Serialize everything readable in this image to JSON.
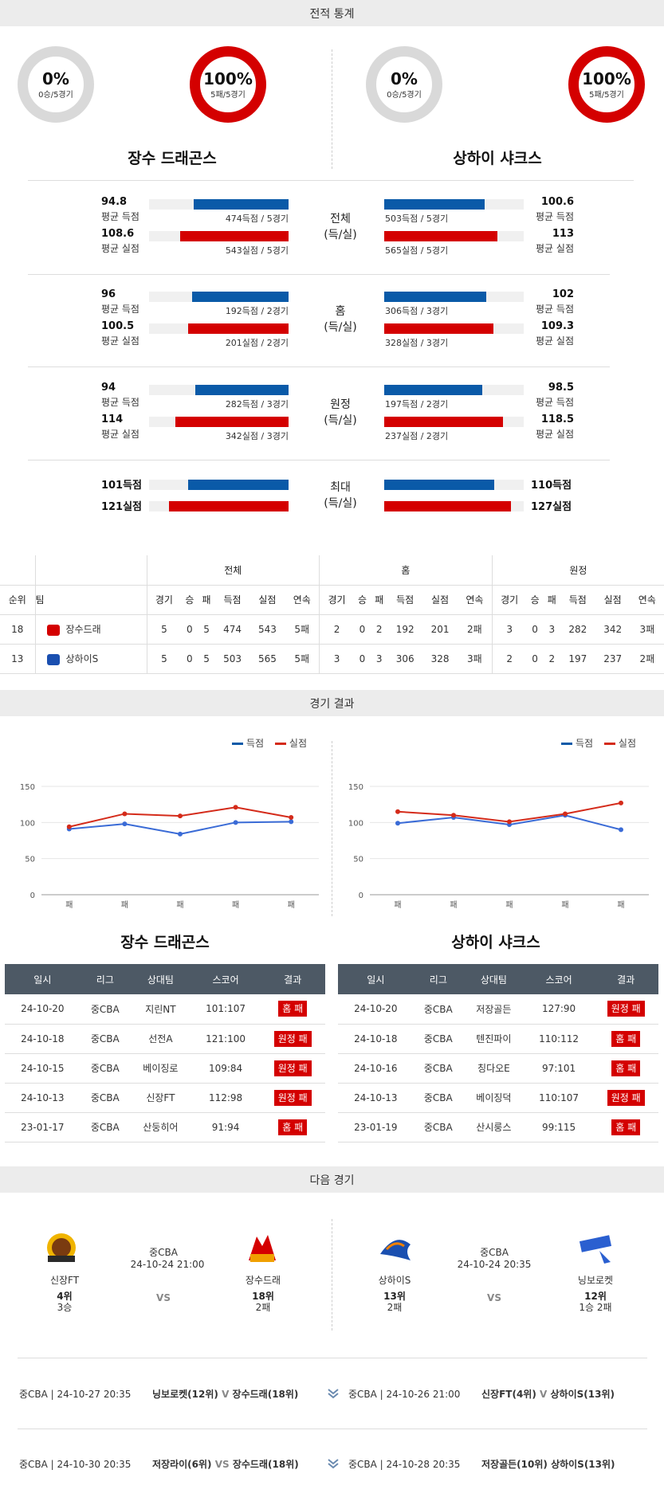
{
  "sections": {
    "stats": "전적 통계",
    "results": "경기 결과",
    "next": "다음 경기"
  },
  "teams": {
    "left": {
      "name": "장수 드래곤스",
      "win_pct": "0%",
      "win_sub": "0승/5경기",
      "loss_pct": "100%",
      "loss_sub": "5패/5경기"
    },
    "right": {
      "name": "상하이 샤크스",
      "win_pct": "0%",
      "win_sub": "0승/5경기",
      "loss_pct": "100%",
      "loss_sub": "5패/5경기"
    }
  },
  "compare": [
    {
      "label1": "전체",
      "label2": "(득/실)",
      "left": {
        "score": "94.8",
        "score_lbl": "평균 득점",
        "score_bar": "474득점 / 5경기",
        "score_frac": 0.68,
        "concede": "108.6",
        "concede_lbl": "평균 실점",
        "concede_bar": "543실점 / 5경기",
        "concede_frac": 0.78
      },
      "right": {
        "score": "100.6",
        "score_lbl": "평균 득점",
        "score_bar": "503득점 / 5경기",
        "score_frac": 0.72,
        "concede": "113",
        "concede_lbl": "평균 실점",
        "concede_bar": "565실점 / 5경기",
        "concede_frac": 0.81
      }
    },
    {
      "label1": "홈",
      "label2": "(득/실)",
      "left": {
        "score": "96",
        "score_lbl": "평균 득점",
        "score_bar": "192득점 / 2경기",
        "score_frac": 0.69,
        "concede": "100.5",
        "concede_lbl": "평균 실점",
        "concede_bar": "201실점 / 2경기",
        "concede_frac": 0.72
      },
      "right": {
        "score": "102",
        "score_lbl": "평균 득점",
        "score_bar": "306득점 / 3경기",
        "score_frac": 0.73,
        "concede": "109.3",
        "concede_lbl": "평균 실점",
        "concede_bar": "328실점 / 3경기",
        "concede_frac": 0.78
      }
    },
    {
      "label1": "원정",
      "label2": "(득/실)",
      "left": {
        "score": "94",
        "score_lbl": "평균 득점",
        "score_bar": "282득점 / 3경기",
        "score_frac": 0.67,
        "concede": "114",
        "concede_lbl": "평균 실점",
        "concede_bar": "342실점 / 3경기",
        "concede_frac": 0.81
      },
      "right": {
        "score": "98.5",
        "score_lbl": "평균 득점",
        "score_bar": "197득점 / 2경기",
        "score_frac": 0.7,
        "concede": "118.5",
        "concede_lbl": "평균 실점",
        "concede_bar": "237실점 / 2경기",
        "concede_frac": 0.85
      }
    }
  ],
  "max": {
    "label1": "최대",
    "label2": "(득/실)",
    "left_score": "101득점",
    "left_concede": "121실점",
    "left_score_frac": 0.72,
    "left_concede_frac": 0.86,
    "right_score": "110득점",
    "right_concede": "127실점",
    "right_score_frac": 0.79,
    "right_concede_frac": 0.91
  },
  "standings": {
    "groups": [
      "전체",
      "홈",
      "원정"
    ],
    "cols": [
      "순위",
      "팀",
      "경기",
      "승",
      "패",
      "득점",
      "실점",
      "연속",
      "경기",
      "승",
      "패",
      "득점",
      "실점",
      "연속",
      "경기",
      "승",
      "패",
      "득점",
      "실점",
      "연속"
    ],
    "rows": [
      [
        "18",
        "장수드래",
        "5",
        "0",
        "5",
        "474",
        "543",
        "5패",
        "2",
        "0",
        "2",
        "192",
        "201",
        "2패",
        "3",
        "0",
        "3",
        "282",
        "342",
        "3패"
      ],
      [
        "13",
        "상하이S",
        "5",
        "0",
        "5",
        "503",
        "565",
        "5패",
        "3",
        "0",
        "3",
        "306",
        "328",
        "3패",
        "2",
        "0",
        "2",
        "197",
        "237",
        "2패"
      ]
    ]
  },
  "legend": {
    "score": "득점",
    "concede": "실점"
  },
  "colors": {
    "blue": "#3a6bd6",
    "red": "#d42b1a"
  },
  "chart_data": [
    {
      "type": "line",
      "x": [
        "패",
        "패",
        "패",
        "패",
        "패"
      ],
      "ylim": [
        0,
        150
      ],
      "yticks": [
        0,
        50,
        100,
        150
      ],
      "series": [
        {
          "name": "득점",
          "values": [
            91,
            98,
            84,
            100,
            101
          ]
        },
        {
          "name": "실점",
          "values": [
            94,
            112,
            109,
            121,
            107
          ]
        }
      ]
    },
    {
      "type": "line",
      "x": [
        "패",
        "패",
        "패",
        "패",
        "패"
      ],
      "ylim": [
        0,
        150
      ],
      "yticks": [
        0,
        50,
        100,
        150
      ],
      "series": [
        {
          "name": "득점",
          "values": [
            99,
            107,
            97,
            110,
            90
          ]
        },
        {
          "name": "실점",
          "values": [
            115,
            110,
            101,
            112,
            127
          ]
        }
      ]
    }
  ],
  "results": {
    "headers": [
      "일시",
      "리그",
      "상대팀",
      "스코어",
      "결과"
    ],
    "left": [
      [
        "24-10-20",
        "중CBA",
        "지린NT",
        "101:107",
        "홈 패"
      ],
      [
        "24-10-18",
        "중CBA",
        "선전A",
        "121:100",
        "원정 패"
      ],
      [
        "24-10-15",
        "중CBA",
        "베이징로",
        "109:84",
        "원정 패"
      ],
      [
        "24-10-13",
        "중CBA",
        "신장FT",
        "112:98",
        "원정 패"
      ],
      [
        "23-01-17",
        "중CBA",
        "산둥히어",
        "91:94",
        "홈 패"
      ]
    ],
    "right": [
      [
        "24-10-20",
        "중CBA",
        "저장골든",
        "127:90",
        "원정 패"
      ],
      [
        "24-10-18",
        "중CBA",
        "텐진파이",
        "110:112",
        "홈 패"
      ],
      [
        "24-10-16",
        "중CBA",
        "칭다오E",
        "97:101",
        "홈 패"
      ],
      [
        "24-10-13",
        "중CBA",
        "베이징덕",
        "110:107",
        "원정 패"
      ],
      [
        "23-01-19",
        "중CBA",
        "산시룽스",
        "99:115",
        "홈 패"
      ]
    ]
  },
  "next": {
    "left": {
      "league": "중CBA",
      "datetime": "24-10-24 21:00",
      "vs": "VS",
      "home": {
        "name": "신장FT",
        "rank": "4위",
        "rec": "3승"
      },
      "away": {
        "name": "장수드래",
        "rank": "18위",
        "rec": "2패"
      }
    },
    "right": {
      "league": "중CBA",
      "datetime": "24-10-24 20:35",
      "vs": "VS",
      "home": {
        "name": "상하이S",
        "rank": "13위",
        "rec": "2패"
      },
      "away": {
        "name": "닝보로켓",
        "rank": "12위",
        "rec": "1승 2패"
      }
    }
  },
  "fixtures": [
    {
      "left_info": "중CBA | 24-10-27 20:35",
      "left_home": "닝보로켓(12위)",
      "left_vs": "V",
      "left_away": "장수드래(18위)",
      "right_info": "중CBA | 24-10-26 21:00",
      "right_home": "신장FT(4위)",
      "right_vs": "V",
      "right_away": "상하이S(13위)"
    },
    {
      "left_info": "중CBA | 24-10-30 20:35",
      "left_home": "저장라이(6위)",
      "left_vs": "VS",
      "left_away": "장수드래(18위)",
      "right_info": "중CBA | 24-10-28 20:35",
      "right_home": "저장골든(10위)",
      "right_vs": "",
      "right_away": "상하이S(13위)"
    }
  ]
}
